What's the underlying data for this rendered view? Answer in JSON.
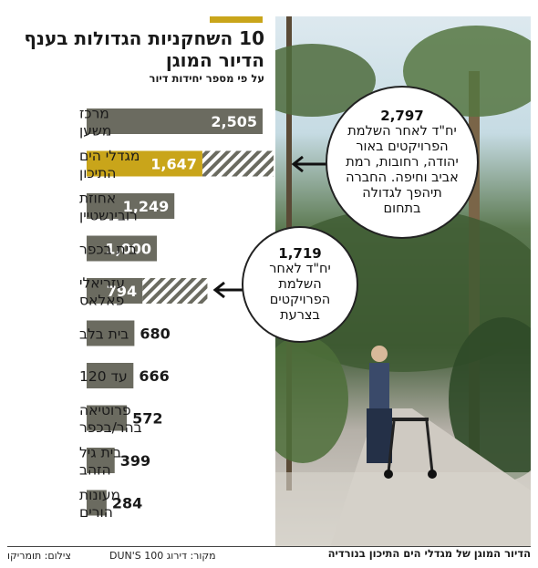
{
  "colors": {
    "accent": "#c9a51a",
    "bar": "#6b6b60",
    "hatch": "#6b6b60",
    "text": "#1a1a1a"
  },
  "header": {
    "title_line1": "10 השחקניות הגדולות בענף",
    "title_line2": "הדיור המוגן",
    "subtitle": "על פי מספר יחידות דיור"
  },
  "chart_data": {
    "type": "bar",
    "orientation": "horizontal",
    "title": "10 השחקניות הגדולות בענף הדיור המוגן",
    "subtitle": "על פי מספר יחידות דיור",
    "categories": [
      [
        "מרכז",
        "משען"
      ],
      [
        "מגדלי הים",
        "התיכון"
      ],
      [
        "אחוזת",
        "רובינשטיין"
      ],
      [
        "בית בכפר"
      ],
      [
        "עזריאלי",
        "פאלאס"
      ],
      [
        "בית בלב"
      ],
      [
        "עד 120"
      ],
      [
        "פרוטיאה",
        "בהר/בכפר"
      ],
      [
        "בית גיל",
        "הזהב"
      ],
      [
        "מעונות",
        "הורים"
      ]
    ],
    "values": [
      2505,
      1647,
      1249,
      1000,
      794,
      680,
      666,
      572,
      399,
      284
    ],
    "value_labels": [
      "2,505",
      "1,647",
      "1,249",
      "1,000",
      "794",
      "680",
      "666",
      "572",
      "399",
      "284"
    ],
    "future_values": [
      null,
      2797,
      null,
      null,
      1719,
      null,
      null,
      null,
      null,
      null
    ],
    "highlight_index": 1,
    "xlim": [
      0,
      2505
    ]
  },
  "callouts": [
    {
      "number": "2,797",
      "lines": [
        "יח\"ד לאחר השלמת",
        "הפרויקטים באור",
        "יהודה, רחובות, רמת",
        "אביב וחיפה. החברה",
        "תיהפך לגדולה",
        "בתחום"
      ]
    },
    {
      "number": "1,719",
      "lines": [
        "יח\"ד לאחר",
        "השלמת",
        "הפרויקטים",
        "בצרעת"
      ]
    }
  ],
  "footer": {
    "caption": "הדיור המוגן של מגדלי הים התיכון בנורדיה",
    "source": "מקור: דירוג DUN'S 100",
    "credit": "צילום: תומריקו"
  }
}
